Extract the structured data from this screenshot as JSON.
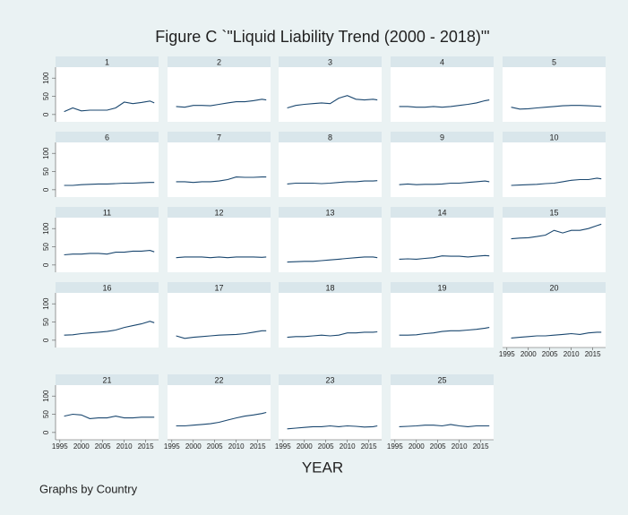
{
  "title": "Figure C `\"Liquid Liability Trend (2000 - 2018)\"'",
  "x_label": "YEAR",
  "note": "Graphs by Country",
  "axes": {
    "xlim": [
      1994,
      2018
    ],
    "xticks": [
      1995,
      2000,
      2005,
      2010,
      2015
    ],
    "ylim": [
      -20,
      130
    ],
    "yticks": [
      0,
      50,
      100
    ]
  },
  "x": [
    1996,
    1998,
    2000,
    2002,
    2004,
    2006,
    2008,
    2010,
    2012,
    2014,
    2016,
    2017
  ],
  "line_color": "#1a476f",
  "chart_data": [
    {
      "type": "line",
      "title": "1",
      "values": [
        8,
        18,
        10,
        12,
        12,
        12,
        18,
        34,
        30,
        33,
        37,
        32
      ]
    },
    {
      "type": "line",
      "title": "2",
      "values": [
        22,
        20,
        25,
        25,
        24,
        28,
        32,
        35,
        35,
        38,
        42,
        40
      ]
    },
    {
      "type": "line",
      "title": "3",
      "values": [
        18,
        25,
        28,
        30,
        32,
        30,
        45,
        52,
        42,
        40,
        42,
        40
      ]
    },
    {
      "type": "line",
      "title": "4",
      "values": [
        22,
        22,
        20,
        20,
        22,
        20,
        22,
        25,
        28,
        32,
        38,
        40
      ]
    },
    {
      "type": "line",
      "title": "5",
      "values": [
        20,
        15,
        16,
        18,
        20,
        22,
        24,
        25,
        25,
        24,
        23,
        22
      ]
    },
    {
      "type": "line",
      "title": "6",
      "values": [
        12,
        12,
        14,
        15,
        16,
        16,
        17,
        18,
        18,
        19,
        20,
        20
      ]
    },
    {
      "type": "line",
      "title": "7",
      "values": [
        22,
        22,
        20,
        22,
        22,
        24,
        28,
        35,
        34,
        34,
        35,
        35
      ]
    },
    {
      "type": "line",
      "title": "8",
      "values": [
        16,
        18,
        18,
        18,
        17,
        18,
        20,
        22,
        22,
        24,
        24,
        25
      ]
    },
    {
      "type": "line",
      "title": "9",
      "values": [
        14,
        16,
        14,
        15,
        15,
        16,
        18,
        18,
        20,
        22,
        24,
        22
      ]
    },
    {
      "type": "line",
      "title": "10",
      "values": [
        12,
        13,
        14,
        15,
        17,
        18,
        22,
        26,
        28,
        28,
        32,
        30
      ]
    },
    {
      "type": "line",
      "title": "11",
      "values": [
        28,
        30,
        30,
        32,
        32,
        30,
        35,
        35,
        38,
        38,
        40,
        36
      ]
    },
    {
      "type": "line",
      "title": "12",
      "values": [
        20,
        22,
        22,
        22,
        20,
        22,
        20,
        22,
        22,
        22,
        21,
        22
      ]
    },
    {
      "type": "line",
      "title": "13",
      "values": [
        8,
        9,
        10,
        10,
        12,
        14,
        16,
        18,
        20,
        22,
        22,
        20
      ]
    },
    {
      "type": "line",
      "title": "14",
      "values": [
        16,
        17,
        16,
        18,
        20,
        25,
        24,
        24,
        22,
        24,
        26,
        25
      ]
    },
    {
      "type": "line",
      "title": "15",
      "values": [
        72,
        74,
        75,
        78,
        82,
        95,
        88,
        95,
        95,
        100,
        108,
        112
      ]
    },
    {
      "type": "line",
      "title": "16",
      "values": [
        14,
        15,
        18,
        20,
        22,
        24,
        28,
        35,
        40,
        45,
        52,
        48
      ]
    },
    {
      "type": "line",
      "title": "17",
      "values": [
        12,
        5,
        8,
        10,
        12,
        14,
        15,
        16,
        18,
        22,
        26,
        26
      ]
    },
    {
      "type": "line",
      "title": "18",
      "values": [
        8,
        10,
        10,
        12,
        14,
        12,
        14,
        20,
        20,
        22,
        22,
        23
      ]
    },
    {
      "type": "line",
      "title": "19",
      "values": [
        14,
        14,
        15,
        18,
        20,
        24,
        26,
        26,
        28,
        30,
        33,
        35
      ]
    },
    {
      "type": "line",
      "title": "20",
      "values": [
        6,
        8,
        10,
        12,
        12,
        14,
        16,
        18,
        16,
        20,
        22,
        22
      ]
    },
    {
      "type": "line",
      "title": "21",
      "values": [
        45,
        50,
        48,
        38,
        40,
        40,
        45,
        40,
        40,
        42,
        42,
        42
      ]
    },
    {
      "type": "line",
      "title": "22",
      "values": [
        18,
        18,
        20,
        22,
        24,
        28,
        34,
        40,
        45,
        48,
        52,
        55
      ]
    },
    {
      "type": "line",
      "title": "23",
      "values": [
        10,
        12,
        14,
        16,
        16,
        18,
        16,
        18,
        17,
        15,
        16,
        18
      ]
    },
    {
      "type": "line",
      "title": "25",
      "values": [
        16,
        17,
        18,
        20,
        20,
        18,
        22,
        18,
        16,
        18,
        18,
        18
      ]
    }
  ]
}
